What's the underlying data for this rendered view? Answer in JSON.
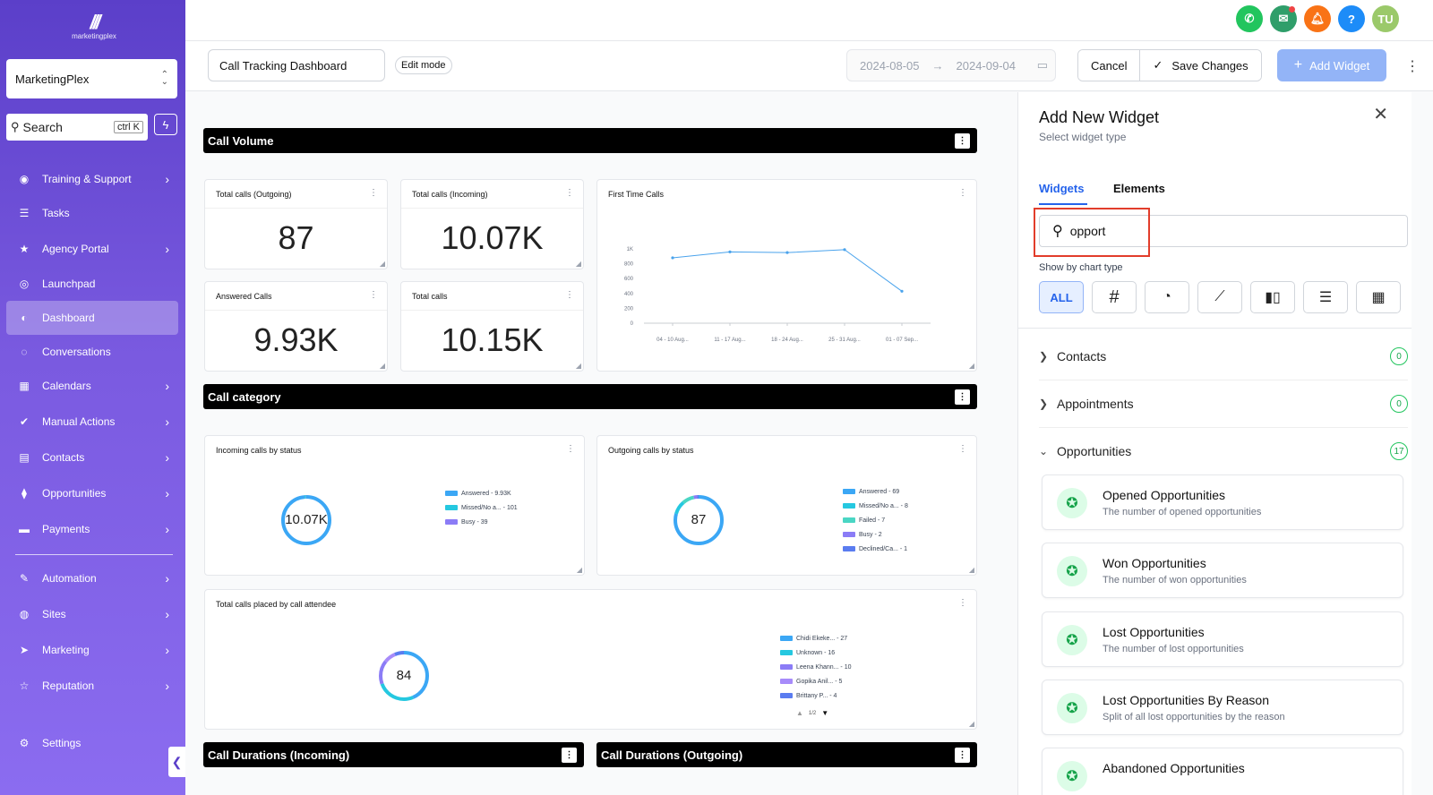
{
  "sidebar": {
    "logo_text": "marketingplex",
    "account": "MarketingPlex",
    "search_label": "Search",
    "search_shortcut": "ctrl K",
    "items": [
      {
        "label": "Training & Support",
        "icon": "lifebuoy-icon",
        "has_arrow": true
      },
      {
        "label": "Tasks",
        "icon": "list-icon",
        "has_arrow": false
      },
      {
        "label": "Agency Portal",
        "icon": "star-icon",
        "has_arrow": true
      },
      {
        "label": "Launchpad",
        "icon": "rocket-icon",
        "has_arrow": false
      },
      {
        "label": "Dashboard",
        "icon": "gauge-icon",
        "has_arrow": false,
        "active": true
      },
      {
        "label": "Conversations",
        "icon": "chat-icon",
        "has_arrow": false
      },
      {
        "label": "Calendars",
        "icon": "calendar-icon",
        "has_arrow": true
      },
      {
        "label": "Manual Actions",
        "icon": "check-icon",
        "has_arrow": true
      },
      {
        "label": "Contacts",
        "icon": "contact-card-icon",
        "has_arrow": true
      },
      {
        "label": "Opportunities",
        "icon": "funnel-icon",
        "has_arrow": true
      },
      {
        "label": "Payments",
        "icon": "card-icon",
        "has_arrow": true
      },
      {
        "label": "Automation",
        "icon": "wand-icon",
        "has_arrow": true
      },
      {
        "label": "Sites",
        "icon": "globe-icon",
        "has_arrow": true
      },
      {
        "label": "Marketing",
        "icon": "send-icon",
        "has_arrow": true
      },
      {
        "label": "Reputation",
        "icon": "star-outline-icon",
        "has_arrow": true
      }
    ],
    "settings": "Settings"
  },
  "topbar": {
    "avatar": "TU"
  },
  "toolbar": {
    "dashboard_name": "Call Tracking Dashboard",
    "edit_mode": "Edit mode",
    "date_start": "2024-08-05",
    "date_end": "2024-09-04",
    "cancel": "Cancel",
    "save": "Save Changes",
    "add_widget": "Add Widget"
  },
  "sections": {
    "call_volume": "Call Volume",
    "call_category": "Call category",
    "durations_incoming": "Call Durations (Incoming)",
    "durations_outgoing": "Call Durations (Outgoing)"
  },
  "stats": {
    "outgoing": {
      "title": "Total calls (Outgoing)",
      "value": "87"
    },
    "incoming": {
      "title": "Total calls (Incoming)",
      "value": "10.07K"
    },
    "answered": {
      "title": "Answered Calls",
      "value": "9.93K"
    },
    "total": {
      "title": "Total calls",
      "value": "10.15K"
    }
  },
  "chart_data": [
    {
      "type": "line",
      "title": "First Time Calls",
      "categories": [
        "04 - 10 Aug...",
        "11 - 17 Aug...",
        "18 - 24 Aug...",
        "25 - 31 Aug...",
        "01 - 07 Sep..."
      ],
      "values": [
        880,
        960,
        950,
        990,
        430
      ],
      "y_ticks": [
        "0",
        "200",
        "400",
        "600",
        "800",
        "1K"
      ],
      "ylim": [
        0,
        1000
      ]
    },
    {
      "type": "pie",
      "title": "Incoming calls by status",
      "center_label": "10.07K",
      "legend": [
        "Answered - 9.93K",
        "Missed/No a... - 101",
        "Busy - 39"
      ],
      "values": [
        9930,
        101,
        39
      ],
      "colors": [
        "#3ba7f5",
        "#25c8e0",
        "#8b7cf6"
      ]
    },
    {
      "type": "pie",
      "title": "Outgoing calls by status",
      "center_label": "87",
      "legend": [
        "Answered - 69",
        "Missed/No a... - 8",
        "Failed - 7",
        "Busy - 2",
        "Declined/Ca... - 1"
      ],
      "values": [
        69,
        8,
        7,
        2,
        1
      ],
      "colors": [
        "#3ba7f5",
        "#25c8e0",
        "#4ad6c4",
        "#8b7cf6",
        "#5a7cf0"
      ]
    },
    {
      "type": "pie",
      "title": "Total calls placed by call attendee",
      "center_label": "84",
      "legend": [
        "Chidi Ekeke... - 27",
        "Unknown - 16",
        "Leena Khann... - 10",
        "Gopika Anil... - 5",
        "Brittany P... - 4"
      ],
      "values": [
        27,
        16,
        10,
        5,
        4
      ],
      "colors": [
        "#3ba7f5",
        "#25c8e0",
        "#8b7cf6",
        "#a78bfa",
        "#5a7cf0"
      ],
      "pager": "1/2"
    }
  ],
  "panel": {
    "title": "Add New Widget",
    "subtitle": "Select widget type",
    "tabs": [
      "Widgets",
      "Elements"
    ],
    "search_value": "opport",
    "chart_type_label": "Show by chart type",
    "types_all": "ALL",
    "groups": [
      {
        "label": "Contacts",
        "count": "0"
      },
      {
        "label": "Appointments",
        "count": "0"
      },
      {
        "label": "Opportunities",
        "count": "17"
      }
    ],
    "widgets": [
      {
        "title": "Opened Opportunities",
        "desc": "The number of opened opportunities"
      },
      {
        "title": "Won Opportunities",
        "desc": "The number of won opportunities"
      },
      {
        "title": "Lost Opportunities",
        "desc": "The number of lost opportunities"
      },
      {
        "title": "Lost Opportunities By Reason",
        "desc": "Split of all lost opportunities by the reason"
      },
      {
        "title": "Abandoned Opportunities",
        "desc": ""
      }
    ]
  },
  "colors": {
    "accent": "#2563eb",
    "sidebar": "#6d4fe0",
    "success": "#16a34a",
    "highlight": "#e23d2b"
  }
}
